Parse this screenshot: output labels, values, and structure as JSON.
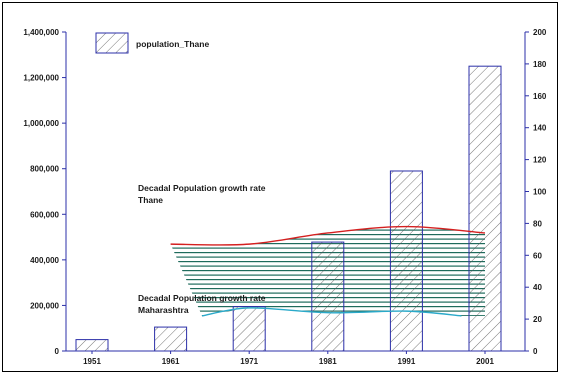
{
  "chart_data": {
    "type": "bar",
    "categories": [
      "1951",
      "1961",
      "1971",
      "1981",
      "1991",
      "2001"
    ],
    "series": [
      {
        "name": "population_Thane",
        "kind": "bar",
        "axis": "left",
        "values": [
          50000,
          105000,
          195000,
          478000,
          790000,
          1250000
        ]
      },
      {
        "kind": "line",
        "axis": "right",
        "x": [
          "1961",
          "1971",
          "1981",
          "1991",
          "2001"
        ],
        "values": [
          67,
          67,
          74,
          78,
          74
        ]
      },
      {
        "kind": "area",
        "axis": "right",
        "x": [
          1965,
          1971,
          1981,
          1991,
          1998
        ],
        "values": [
          22,
          27,
          24,
          25,
          22
        ]
      }
    ],
    "annotations": [
      {
        "text_line1": "Decadal Population growth rate",
        "text_line2": "Thane"
      },
      {
        "text_line1": "Decadal Population growth rate",
        "text_line2": "Maharashtra"
      }
    ],
    "left_axis": {
      "ylim": [
        0,
        1400000
      ],
      "ticks": [
        "0",
        "200,000",
        "400,000",
        "600,000",
        "800,000",
        "1,000,000",
        "1,200,000",
        "1,400,000"
      ]
    },
    "right_axis": {
      "ylim": [
        0,
        200
      ],
      "ticks": [
        "0",
        "20",
        "40",
        "60",
        "80",
        "100",
        "120",
        "140",
        "160",
        "180",
        "200"
      ]
    },
    "legend": {
      "position": "top-left"
    },
    "colors": {
      "bar_outline": "#2b2fa8",
      "bar_hatch": "#555555",
      "thane_line": "#d42020",
      "maharashtra_line": "#2aa9c9",
      "fill_stripe": "#1f6b5c",
      "axis": "#2b2fa8"
    },
    "grid": false
  }
}
